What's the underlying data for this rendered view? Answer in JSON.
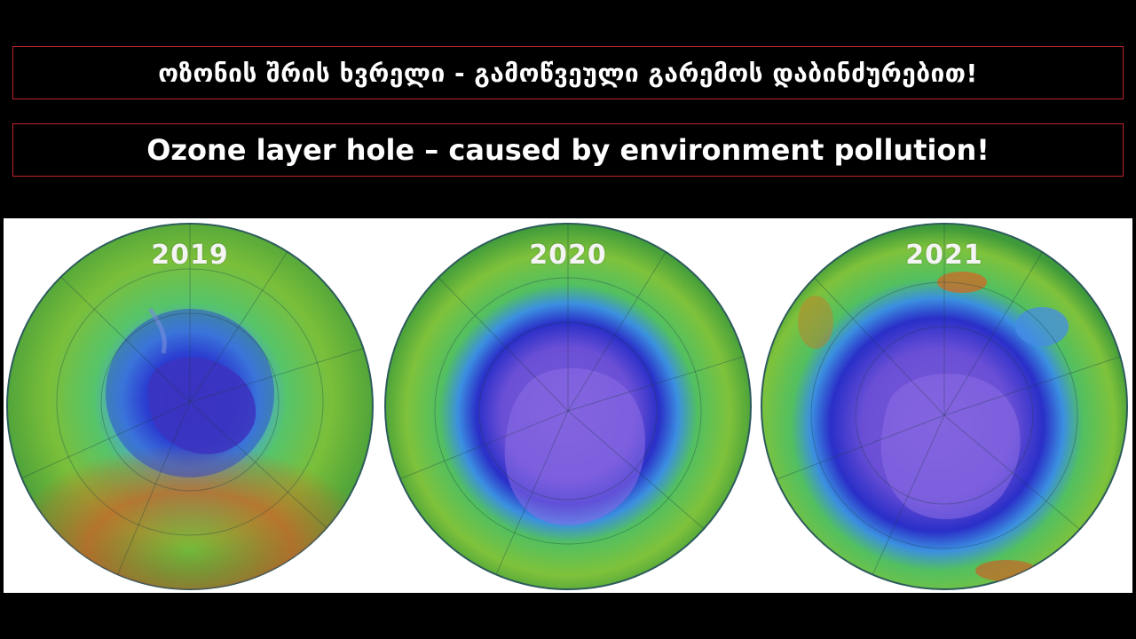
{
  "titles": {
    "georgian": "ოზონის შრის ხვრელი - გამოწვეული გარემოს დაბინძურებით!",
    "english": "Ozone layer hole – caused by environment pollution!"
  },
  "globes": [
    {
      "year": "2019"
    },
    {
      "year": "2020"
    },
    {
      "year": "2021"
    }
  ],
  "colors": {
    "background": "#000000",
    "title_border": "#c0262c",
    "title_text": "#ffffff",
    "ozone_high": "#c0622a",
    "ozone_mid": "#4fb63a",
    "ozone_low": "#2f2fc8",
    "ozone_hole": "#7a5ad8"
  }
}
